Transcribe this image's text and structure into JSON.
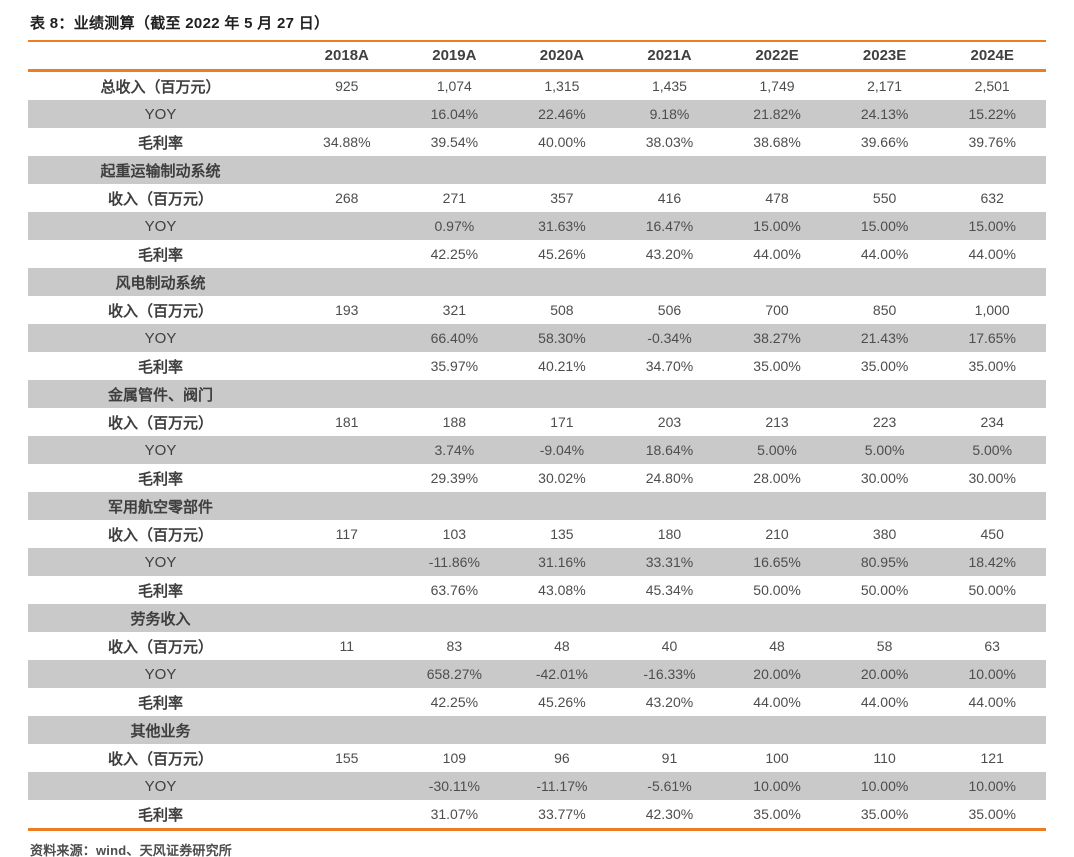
{
  "page": {
    "title": "表 8：业绩测算（截至 2022 年 5 月 27 日）",
    "source": "资料来源：wind、天风证券研究所"
  },
  "colors": {
    "accent_orange": "#ED7D22",
    "shaded_row_gray": "#C9C9C9",
    "body_text": "#4D4D4D"
  },
  "table": {
    "header": [
      "",
      "2018A",
      "2019A",
      "2020A",
      "2021A",
      "2022E",
      "2023E",
      "2024E"
    ],
    "rows": [
      {
        "label": "总收入（百万元）",
        "section": false,
        "values": [
          "925",
          "1,074",
          "1,315",
          "1,435",
          "1,749",
          "2,171",
          "2,501"
        ]
      },
      {
        "label": "YOY",
        "section": false,
        "values": [
          "",
          "16.04%",
          "22.46%",
          "9.18%",
          "21.82%",
          "24.13%",
          "15.22%"
        ]
      },
      {
        "label": "毛利率",
        "section": false,
        "values": [
          "34.88%",
          "39.54%",
          "40.00%",
          "38.03%",
          "38.68%",
          "39.66%",
          "39.76%"
        ]
      },
      {
        "label": "起重运输制动系统",
        "section": true,
        "values": [
          "",
          "",
          "",
          "",
          "",
          "",
          ""
        ]
      },
      {
        "label": "收入（百万元）",
        "section": false,
        "values": [
          "268",
          "271",
          "357",
          "416",
          "478",
          "550",
          "632"
        ]
      },
      {
        "label": "YOY",
        "section": false,
        "values": [
          "",
          "0.97%",
          "31.63%",
          "16.47%",
          "15.00%",
          "15.00%",
          "15.00%"
        ]
      },
      {
        "label": "毛利率",
        "section": false,
        "values": [
          "",
          "42.25%",
          "45.26%",
          "43.20%",
          "44.00%",
          "44.00%",
          "44.00%"
        ]
      },
      {
        "label": "风电制动系统",
        "section": true,
        "values": [
          "",
          "",
          "",
          "",
          "",
          "",
          ""
        ]
      },
      {
        "label": "收入（百万元）",
        "section": false,
        "values": [
          "193",
          "321",
          "508",
          "506",
          "700",
          "850",
          "1,000"
        ]
      },
      {
        "label": "YOY",
        "section": false,
        "values": [
          "",
          "66.40%",
          "58.30%",
          "-0.34%",
          "38.27%",
          "21.43%",
          "17.65%"
        ]
      },
      {
        "label": "毛利率",
        "section": false,
        "values": [
          "",
          "35.97%",
          "40.21%",
          "34.70%",
          "35.00%",
          "35.00%",
          "35.00%"
        ]
      },
      {
        "label": "金属管件、阀门",
        "section": true,
        "values": [
          "",
          "",
          "",
          "",
          "",
          "",
          ""
        ]
      },
      {
        "label": "收入（百万元）",
        "section": false,
        "values": [
          "181",
          "188",
          "171",
          "203",
          "213",
          "223",
          "234"
        ]
      },
      {
        "label": "YOY",
        "section": false,
        "values": [
          "",
          "3.74%",
          "-9.04%",
          "18.64%",
          "5.00%",
          "5.00%",
          "5.00%"
        ]
      },
      {
        "label": "毛利率",
        "section": false,
        "values": [
          "",
          "29.39%",
          "30.02%",
          "24.80%",
          "28.00%",
          "30.00%",
          "30.00%"
        ]
      },
      {
        "label": "军用航空零部件",
        "section": true,
        "values": [
          "",
          "",
          "",
          "",
          "",
          "",
          ""
        ]
      },
      {
        "label": "收入（百万元）",
        "section": false,
        "values": [
          "117",
          "103",
          "135",
          "180",
          "210",
          "380",
          "450"
        ]
      },
      {
        "label": "YOY",
        "section": false,
        "values": [
          "",
          "-11.86%",
          "31.16%",
          "33.31%",
          "16.65%",
          "80.95%",
          "18.42%"
        ]
      },
      {
        "label": "毛利率",
        "section": false,
        "values": [
          "",
          "63.76%",
          "43.08%",
          "45.34%",
          "50.00%",
          "50.00%",
          "50.00%"
        ]
      },
      {
        "label": "劳务收入",
        "section": true,
        "values": [
          "",
          "",
          "",
          "",
          "",
          "",
          ""
        ]
      },
      {
        "label": "收入（百万元）",
        "section": false,
        "values": [
          "11",
          "83",
          "48",
          "40",
          "48",
          "58",
          "63"
        ]
      },
      {
        "label": "YOY",
        "section": false,
        "values": [
          "",
          "658.27%",
          "-42.01%",
          "-16.33%",
          "20.00%",
          "20.00%",
          "10.00%"
        ]
      },
      {
        "label": "毛利率",
        "section": false,
        "values": [
          "",
          "42.25%",
          "45.26%",
          "43.20%",
          "44.00%",
          "44.00%",
          "44.00%"
        ]
      },
      {
        "label": "其他业务",
        "section": true,
        "values": [
          "",
          "",
          "",
          "",
          "",
          "",
          ""
        ]
      },
      {
        "label": "收入（百万元）",
        "section": false,
        "values": [
          "155",
          "109",
          "96",
          "91",
          "100",
          "110",
          "121"
        ]
      },
      {
        "label": "YOY",
        "section": false,
        "values": [
          "",
          "-30.11%",
          "-11.17%",
          "-5.61%",
          "10.00%",
          "10.00%",
          "10.00%"
        ]
      },
      {
        "label": "毛利率",
        "section": false,
        "values": [
          "",
          "31.07%",
          "33.77%",
          "42.30%",
          "35.00%",
          "35.00%",
          "35.00%"
        ]
      }
    ]
  }
}
